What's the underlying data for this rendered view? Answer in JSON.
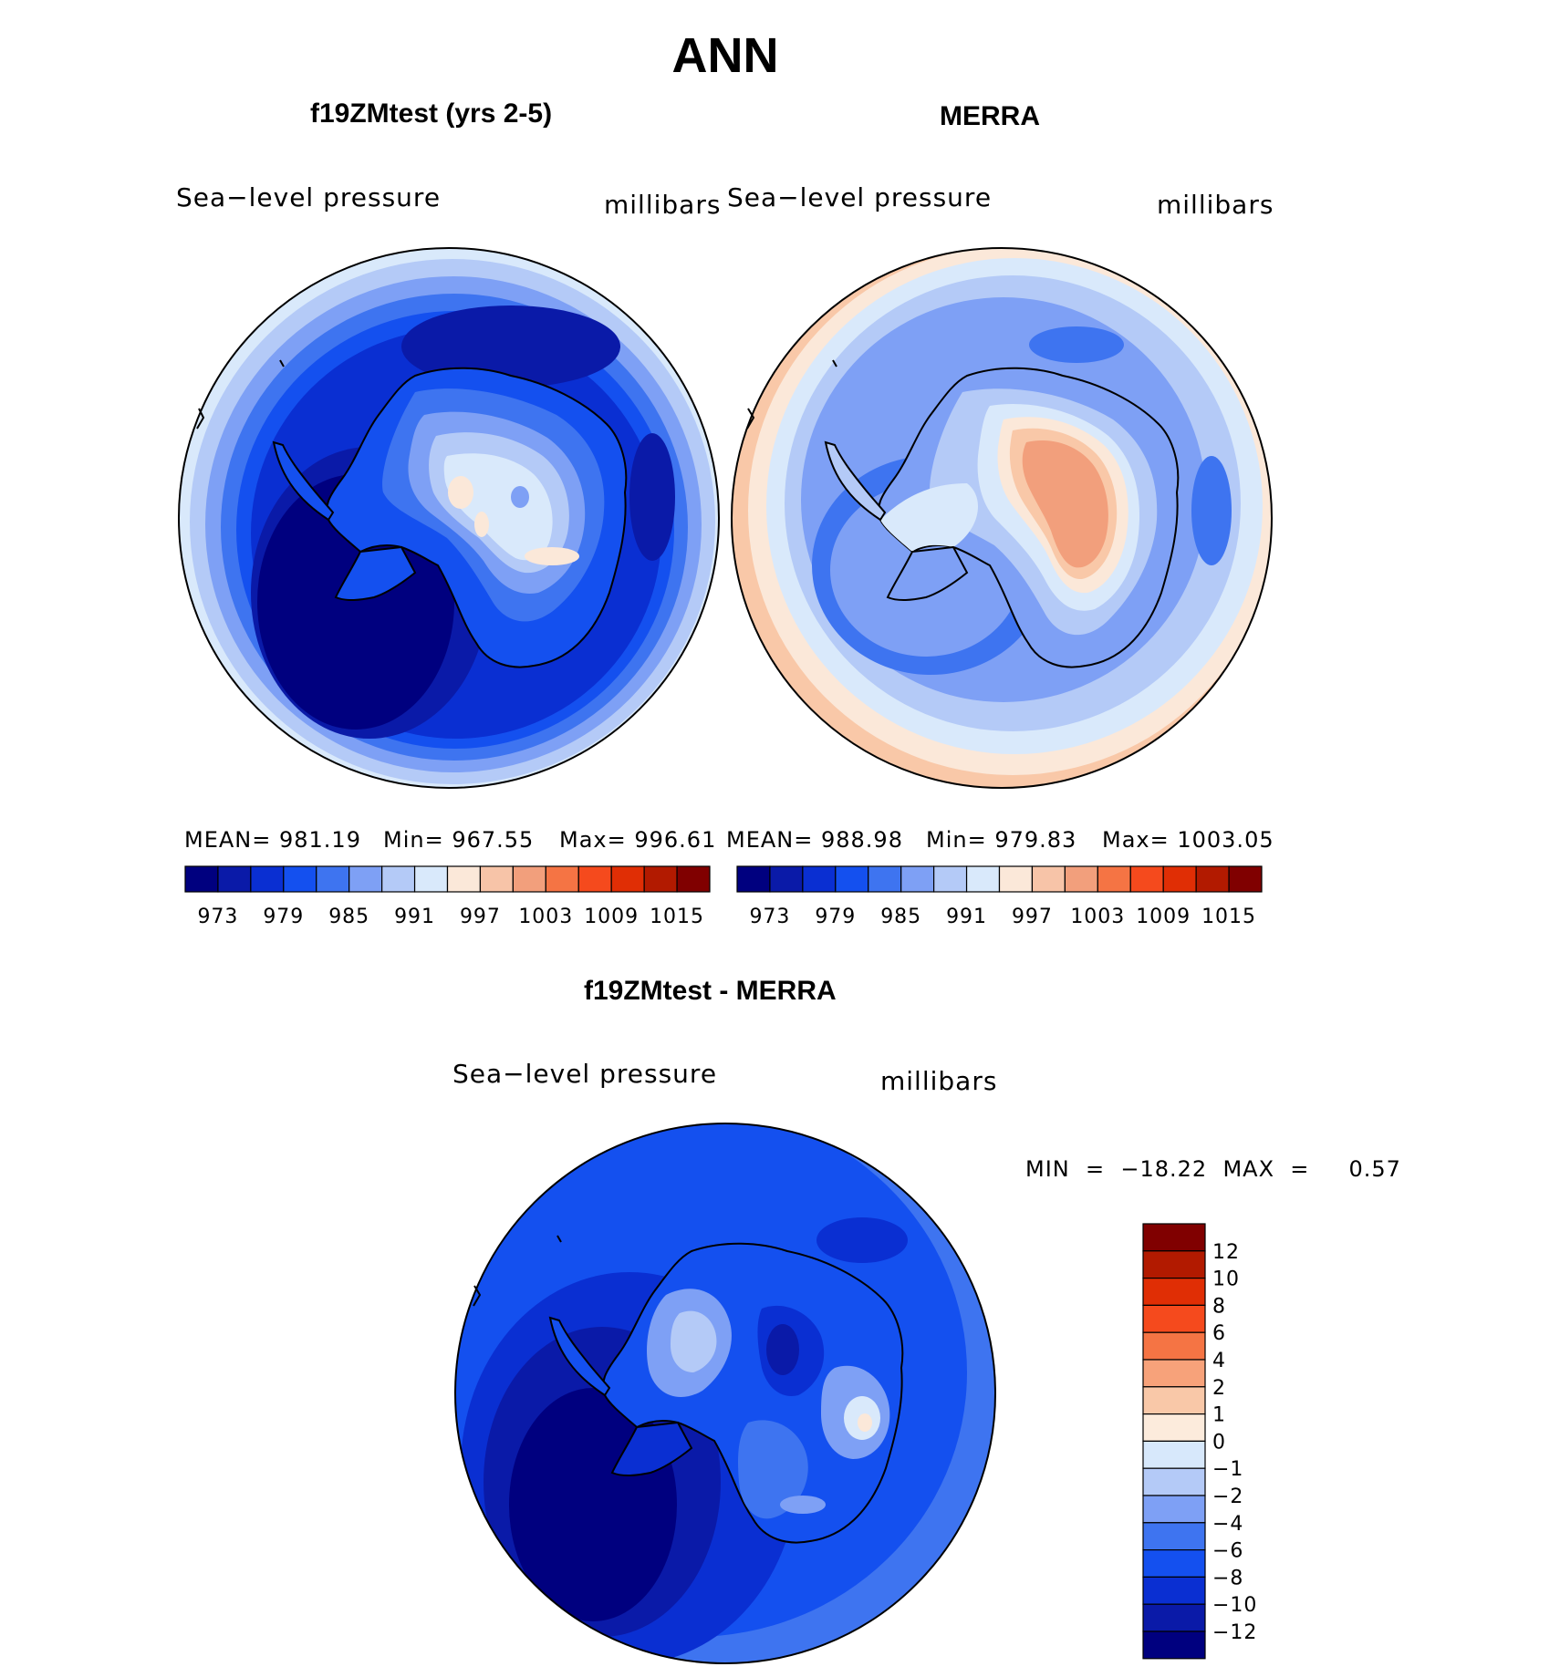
{
  "title": "ANN",
  "palette": [
    "#00007f",
    "#0a1aa8",
    "#0a2fd2",
    "#1450ef",
    "#3e74f0",
    "#7ea0f5",
    "#b4caf7",
    "#d9e9fb",
    "#fbe8d9",
    "#f7c4a8",
    "#f29f7c",
    "#f57444",
    "#f54a1d",
    "#e02e05",
    "#b21a00",
    "#800000"
  ],
  "colorbar": {
    "labels": [
      "973",
      "979",
      "985",
      "991",
      "997",
      "1003",
      "1009",
      "1015"
    ]
  },
  "left": {
    "title": "f19ZMtest (yrs 2-5)",
    "variable": "Sea−level  pressure",
    "units": "millibars",
    "mean_label": "MEAN=  981.19",
    "min_label": "Min=  967.55",
    "max_label": "Max=  996.61"
  },
  "right": {
    "title": "MERRA",
    "variable": "Sea−level  pressure",
    "units": "millibars",
    "mean_label": "MEAN=  988.98",
    "min_label": "Min=  979.83",
    "max_label": "Max=  1003.05"
  },
  "diff": {
    "title": "f19ZMtest - MERRA",
    "variable": "Sea−level  pressure",
    "units": "millibars",
    "minmax_label": "MIN  =  −18.22  MAX  =     0.57",
    "colors": [
      "#800000",
      "#b21a00",
      "#e02e05",
      "#f54a1d",
      "#f57444",
      "#f7a27a",
      "#f9c8a8",
      "#fcebdc",
      "#d7e8fb",
      "#b4caf7",
      "#7ea0f5",
      "#3e74f0",
      "#1450ef",
      "#0a2fd2",
      "#0a1aa8",
      "#00007f"
    ],
    "labels": [
      "12",
      "10",
      "8",
      "6",
      "4",
      "2",
      "1",
      "0",
      "−1",
      "−2",
      "−4",
      "−6",
      "−8",
      "−10",
      "−12"
    ]
  }
}
